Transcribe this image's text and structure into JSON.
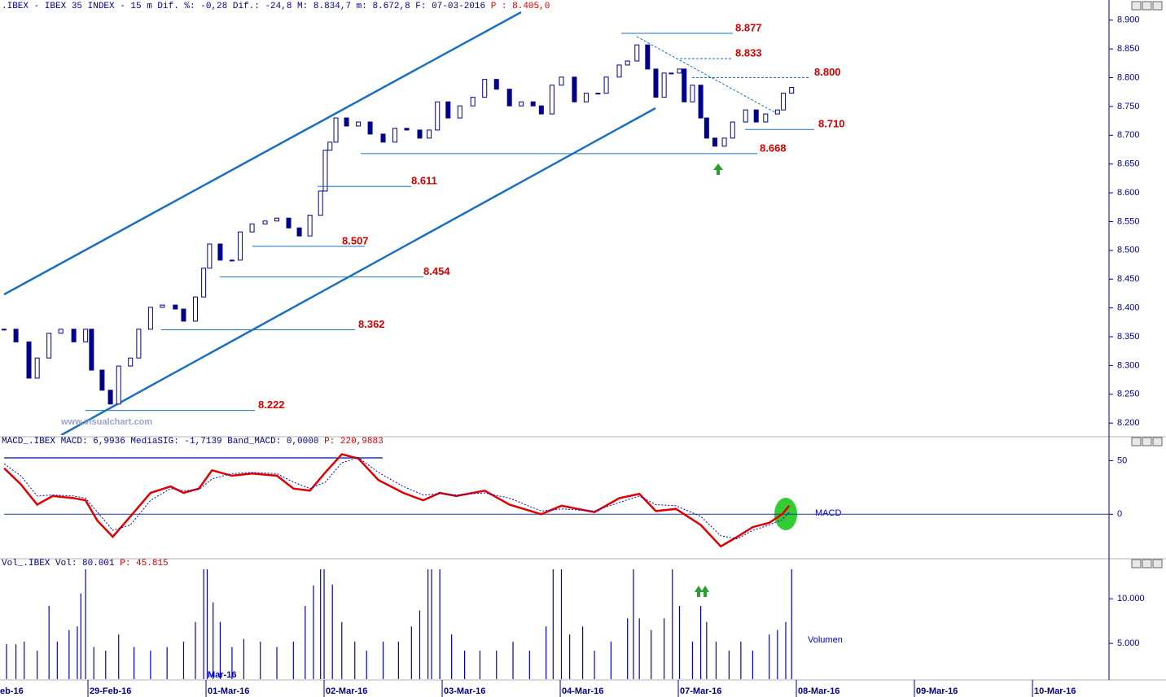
{
  "chart_data": [
    {
      "type": "candlestick",
      "title": ".IBEX - IBEX 35 INDEX -  15 m Dif. %: -0,28 Dif.: -24,8 M: 8.834,7 m: 8.672,8 F: 07-03-2016",
      "title_highlight": "P : 8.405,0",
      "watermark": "www.visualchart.com",
      "x": [
        -0.71,
        -0.61,
        -0.5,
        -0.43,
        -0.33,
        -0.23,
        -0.12,
        -0.02,
        0.03,
        0.12,
        0.19,
        0.26,
        0.36,
        0.43,
        0.53,
        0.63,
        0.74,
        0.81,
        0.91,
        0.98,
        1.03,
        1.12,
        1.22,
        1.29,
        1.39,
        1.5,
        1.6,
        1.7,
        1.79,
        1.88,
        1.97,
        2.01,
        2.05,
        2.1,
        2.19,
        2.29,
        2.39,
        2.5,
        2.6,
        2.7,
        2.81,
        2.89,
        2.96,
        3.05,
        3.15,
        3.26,
        3.36,
        3.46,
        3.57,
        3.67,
        3.77,
        3.84,
        3.93,
        4.01,
        4.12,
        4.22,
        4.32,
        4.39,
        4.5,
        4.57,
        4.65,
        4.74,
        4.81,
        4.88,
        4.94,
        5.01,
        5.05,
        5.12,
        5.19,
        5.24,
        5.31,
        5.39,
        5.46,
        5.57,
        5.66,
        5.74,
        5.84,
        5.89,
        5.96
      ],
      "close": [
        8363,
        8341,
        8278,
        8313,
        8356,
        8363,
        8341,
        8363,
        8292,
        8257,
        8233,
        8299,
        8313,
        8363,
        8401,
        8405,
        8398,
        8377,
        8419,
        8469,
        8511,
        8483,
        8483,
        8532,
        8546,
        8551,
        8556,
        8539,
        8525,
        8561,
        8603,
        8674,
        8688,
        8730,
        8716,
        8723,
        8702,
        8688,
        8712,
        8709,
        8695,
        8709,
        8758,
        8730,
        8751,
        8766,
        8797,
        8780,
        8751,
        8758,
        8751,
        8737,
        8787,
        8801,
        8758,
        8773,
        8773,
        8801,
        8822,
        8829,
        8857,
        8815,
        8766,
        8808,
        8808,
        8815,
        8758,
        8787,
        8730,
        8695,
        8681,
        8695,
        8723,
        8744,
        8723,
        8737,
        8744,
        8773,
        8783
      ],
      "color": "#00008b",
      "levels": [
        {
          "value": 8877,
          "label": "8.877"
        },
        {
          "value": 8833,
          "label": "8.833"
        },
        {
          "value": 8800,
          "label": "8.800"
        },
        {
          "value": 8710,
          "label": "8.710"
        },
        {
          "value": 8668,
          "label": "8.668"
        },
        {
          "value": 8611,
          "label": "8.611"
        },
        {
          "value": 8507,
          "label": "8.507"
        },
        {
          "value": 8454,
          "label": "8.454"
        },
        {
          "value": 8362,
          "label": "8.362"
        },
        {
          "value": 8222,
          "label": "8.222"
        }
      ],
      "xlim": [
        -0.745,
        8.648
      ],
      "ylim": [
        8179,
        8918
      ],
      "yticks": [
        {
          "value": 8200,
          "label": "8.200"
        },
        {
          "value": 8250,
          "label": "8.250"
        },
        {
          "value": 8300,
          "label": "8.300"
        },
        {
          "value": 8350,
          "label": "8.350"
        },
        {
          "value": 8400,
          "label": "8.400"
        },
        {
          "value": 8450,
          "label": "8.450"
        },
        {
          "value": 8500,
          "label": "8.500"
        },
        {
          "value": 8550,
          "label": "8.550"
        },
        {
          "value": 8600,
          "label": "8.600"
        },
        {
          "value": 8650,
          "label": "8.650"
        },
        {
          "value": 8700,
          "label": "8.700"
        },
        {
          "value": 8750,
          "label": "8.750"
        },
        {
          "value": 8800,
          "label": "8.800"
        },
        {
          "value": 8850,
          "label": "8.850"
        },
        {
          "value": 8900,
          "label": "8.900"
        }
      ]
    },
    {
      "type": "line",
      "title": "MACD_.IBEX MACD: 6,9936 MediaSIG: -1,7139 Band_MACD: 0,0000",
      "title_highlight": "P: 220,9883",
      "label": "MACD",
      "x": [
        -0.71,
        -0.57,
        -0.43,
        -0.3,
        -0.12,
        -0.02,
        0.08,
        0.21,
        0.36,
        0.53,
        0.7,
        0.81,
        0.94,
        1.05,
        1.22,
        1.39,
        1.6,
        1.74,
        1.88,
        2.01,
        2.15,
        2.29,
        2.46,
        2.67,
        2.84,
        2.98,
        3.12,
        3.36,
        3.57,
        3.84,
        4.01,
        4.29,
        4.5,
        4.67,
        4.81,
        4.98,
        5.19,
        5.36,
        5.5,
        5.63,
        5.77,
        5.88,
        5.94
      ],
      "series": [
        {
          "color": "#e00000",
          "values": [
            43,
            28,
            9,
            17,
            15,
            13,
            -6,
            -21,
            -2,
            20,
            26,
            20,
            24,
            41,
            36,
            38,
            36,
            24,
            22,
            39,
            56,
            52,
            32,
            20,
            13,
            20,
            17,
            22,
            9,
            0,
            8,
            2,
            15,
            19,
            3,
            5,
            -10,
            -30,
            -21,
            -12,
            -8,
            0,
            8
          ]
        },
        {
          "color": "#0000cc",
          "values": [
            47,
            36,
            17,
            18,
            17,
            15,
            2,
            -15,
            -10,
            13,
            24,
            22,
            23,
            33,
            38,
            39,
            38,
            30,
            24,
            30,
            48,
            53,
            39,
            26,
            18,
            19,
            18,
            20,
            15,
            3,
            5,
            3,
            11,
            17,
            9,
            8,
            -2,
            -20,
            -23,
            -15,
            -10,
            -5,
            2
          ]
        }
      ],
      "xlim": [
        -0.745,
        8.648
      ],
      "ylim": [
        -40,
        64
      ],
      "yticks": [
        0,
        50
      ]
    },
    {
      "type": "volume",
      "title": "Vol_.IBEX Vol: 80.001",
      "title_highlight": "P: 45.815",
      "label": "Volumen",
      "month_label": "Mar-16",
      "x": [
        -0.69,
        -0.61,
        -0.54,
        -0.43,
        -0.33,
        -0.26,
        -0.16,
        -0.09,
        -0.06,
        -0.02,
        0.05,
        0.15,
        0.26,
        0.39,
        0.53,
        0.67,
        0.81,
        0.91,
        0.98,
        1.01,
        1.06,
        1.12,
        1.22,
        1.32,
        1.46,
        1.6,
        1.74,
        1.84,
        1.91,
        1.97,
        2.0,
        2.07,
        2.15,
        2.26,
        2.36,
        2.5,
        2.63,
        2.74,
        2.81,
        2.88,
        2.91,
        2.98,
        3.08,
        3.19,
        3.32,
        3.46,
        3.6,
        3.74,
        3.88,
        3.94,
        4.01,
        4.08,
        4.19,
        4.29,
        4.43,
        4.57,
        4.62,
        4.67,
        4.77,
        4.88,
        4.95,
        5.01,
        5.12,
        5.19,
        5.24,
        5.32,
        5.43,
        5.53,
        5.63,
        5.77,
        5.84,
        5.91,
        5.96
      ],
      "values": [
        4900,
        4900,
        5200,
        4200,
        9200,
        5200,
        6500,
        6900,
        10600,
        13300,
        4600,
        4200,
        6000,
        4600,
        4200,
        4600,
        5200,
        7400,
        13300,
        13300,
        9600,
        7400,
        4600,
        5500,
        5200,
        4600,
        5200,
        9200,
        11500,
        13300,
        13300,
        11600,
        7400,
        5200,
        4200,
        5200,
        5200,
        6900,
        8700,
        13300,
        13300,
        13300,
        6000,
        4200,
        4200,
        4200,
        5200,
        4200,
        6900,
        13300,
        13300,
        6000,
        6900,
        4200,
        5200,
        7800,
        13300,
        7800,
        6500,
        7800,
        13300,
        9200,
        5200,
        9200,
        7400,
        5200,
        4200,
        5200,
        4200,
        6000,
        6500,
        7400,
        13300
      ],
      "color": "#0000cc",
      "xlim": [
        -0.745,
        8.648
      ],
      "ylim": [
        1000,
        13300
      ],
      "yticks": [
        {
          "value": 5000,
          "label": "5.000"
        },
        {
          "value": 10000,
          "label": "10.000"
        }
      ],
      "xticks": [
        {
          "value": -1,
          "label": "eb-16"
        },
        {
          "value": 0,
          "label": "29-Feb-16"
        },
        {
          "value": 1,
          "label": "01-Mar-16"
        },
        {
          "value": 2,
          "label": "02-Mar-16"
        },
        {
          "value": 3,
          "label": "03-Mar-16"
        },
        {
          "value": 4,
          "label": "04-Mar-16"
        },
        {
          "value": 5,
          "label": "07-Mar-16"
        },
        {
          "value": 6,
          "label": "08-Mar-16"
        },
        {
          "value": 7,
          "label": "09-Mar-16"
        },
        {
          "value": 8,
          "label": "10-Mar-16"
        }
      ]
    }
  ]
}
